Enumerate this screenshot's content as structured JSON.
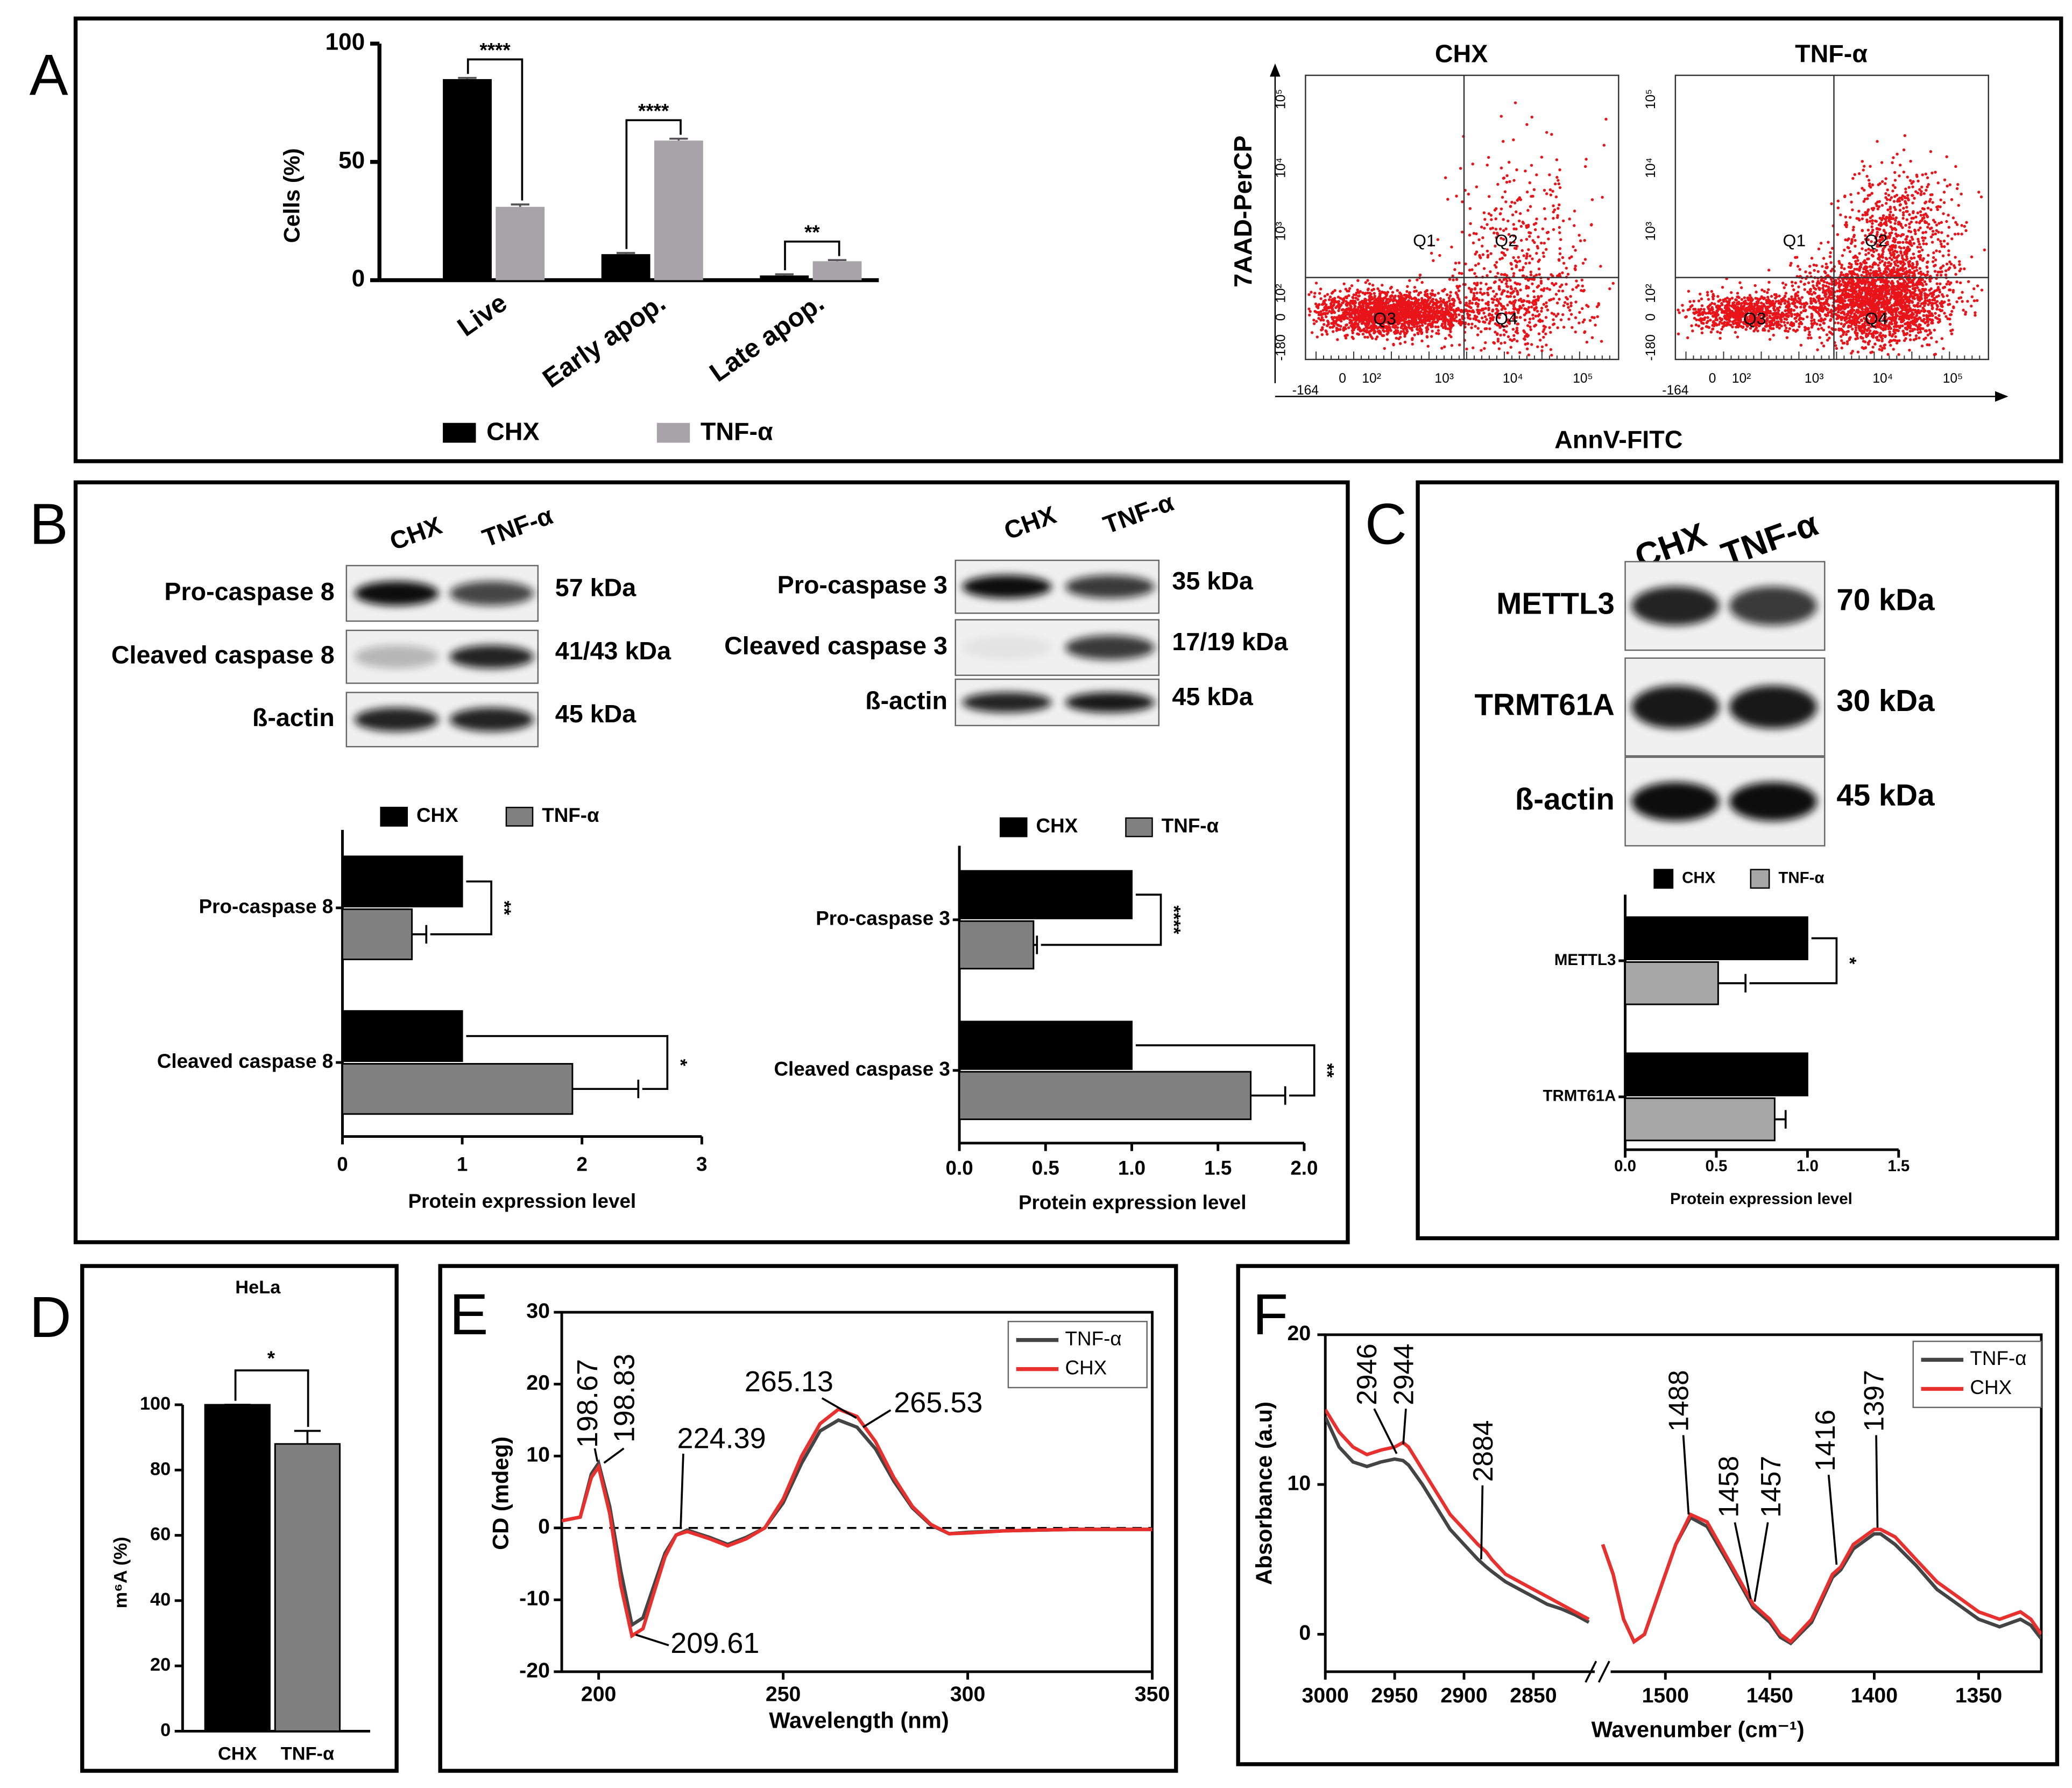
{
  "panel_labels": [
    "A",
    "B",
    "C",
    "D",
    "E",
    "F"
  ],
  "flow": {
    "titles": [
      "CHX",
      "TNF-α"
    ],
    "quadrants": [
      "Q1",
      "Q2",
      "Q3",
      "Q4"
    ],
    "ylabel": "7AAD-PerCP",
    "xlabel": "AnnV-FITC",
    "yticks": [
      "10⁵",
      "10⁴",
      "10³",
      "10²",
      "0",
      "-180"
    ],
    "xticks": [
      "-164",
      "0",
      "10²",
      "10³",
      "10⁴",
      "10⁵"
    ]
  },
  "blots": [
    {
      "lanes": [
        "CHX",
        "TNF-α"
      ],
      "rows": [
        {
          "label": "Pro-caspase 8",
          "size": "57 kDa"
        },
        {
          "label": "Cleaved caspase 8",
          "size": "41/43 kDa"
        },
        {
          "label": "ß-actin",
          "size": "45 kDa"
        }
      ]
    },
    {
      "lanes": [
        "CHX",
        "TNF-α"
      ],
      "rows": [
        {
          "label": "Pro-caspase 3",
          "size": "35 kDa"
        },
        {
          "label": "Cleaved caspase 3",
          "size": "17/19 kDa"
        },
        {
          "label": "ß-actin",
          "size": "45 kDa"
        }
      ]
    },
    {
      "lanes": [
        "CHX",
        "TNF-α"
      ],
      "rows": [
        {
          "label": "METTL3",
          "size": "70 kDa"
        },
        {
          "label": "TRMT61A",
          "size": "30 kDa"
        },
        {
          "label": "ß-actin",
          "size": "45 kDa"
        }
      ]
    }
  ],
  "chart_data": [
    {
      "type": "bar",
      "ylabel": "Cells (%)",
      "categories": [
        "Live",
        "Early apop.",
        "Late apop."
      ],
      "series": [
        {
          "name": "CHX",
          "color": "#000000",
          "values": [
            85,
            11,
            2
          ],
          "errors": [
            0.5,
            0.5,
            0.5
          ]
        },
        {
          "name": "TNF-α",
          "color": "#a7a3a8",
          "values": [
            31,
            59,
            8
          ],
          "errors": [
            1,
            0.8,
            0.5
          ]
        }
      ],
      "ylim": [
        0,
        100
      ],
      "yticks": [
        0,
        50,
        100
      ],
      "significance": [
        "****",
        "****",
        "**"
      ]
    },
    {
      "type": "hbar",
      "xlabel": "Protein expression level",
      "categories": [
        "Pro-caspase 8",
        "Cleaved caspase 8"
      ],
      "series": [
        {
          "name": "CHX",
          "color": "#000000",
          "values": [
            1,
            1
          ]
        },
        {
          "name": "TNF-α",
          "color": "#808080",
          "values": [
            0.58,
            1.92
          ],
          "errors": [
            0.12,
            0.55
          ]
        }
      ],
      "xlim": [
        0,
        3
      ],
      "xticks": [
        0,
        1,
        2,
        3
      ],
      "significance": [
        "**",
        "*"
      ]
    },
    {
      "type": "hbar",
      "xlabel": "Protein expression level",
      "categories": [
        "Pro-caspase 3",
        "Cleaved caspase 3"
      ],
      "series": [
        {
          "name": "CHX",
          "color": "#000000",
          "values": [
            1,
            1
          ]
        },
        {
          "name": "TNF-α",
          "color": "#808080",
          "values": [
            0.43,
            1.69
          ],
          "errors": [
            0.02,
            0.2
          ]
        }
      ],
      "xlim": [
        0,
        2
      ],
      "xticks": [
        {
          "value": 0,
          "label": "0.0"
        },
        0.5,
        {
          "value": 1,
          "label": "1.0"
        },
        1.5,
        {
          "value": 2,
          "label": "2.0"
        }
      ],
      "significance": [
        "****",
        "**"
      ]
    },
    {
      "type": "hbar",
      "xlabel": "Protein expression level",
      "categories": [
        "METTL3",
        "TRMT61A"
      ],
      "series": [
        {
          "name": "CHX",
          "color": "#000000",
          "values": [
            1,
            1
          ]
        },
        {
          "name": "TNF-α",
          "color": "#a6a6a6",
          "values": [
            0.51,
            0.82
          ],
          "errors": [
            0.15,
            0.06
          ]
        }
      ],
      "xlim": [
        0,
        1.5
      ],
      "xticks": [
        {
          "value": 0,
          "label": "0.0"
        },
        0.5,
        {
          "value": 1,
          "label": "1.0"
        },
        1.5
      ],
      "significance": [
        "*",
        null
      ]
    },
    {
      "type": "bar",
      "title": "HeLa",
      "ylabel": "m⁶A (%)",
      "categories": [
        "CHX",
        "TNF-α"
      ],
      "values": [
        100,
        88
      ],
      "errors": [
        0,
        4
      ],
      "colors": [
        "#000000",
        "#7f7f7f"
      ],
      "ylim": [
        0,
        100
      ],
      "yticks": [
        0,
        20,
        40,
        60,
        80,
        100
      ],
      "significance": "*"
    },
    {
      "type": "line",
      "xlabel": "Wavelength (nm)",
      "ylabel": "CD (mdeg)",
      "x": [
        190,
        195,
        198,
        200,
        203,
        206,
        209,
        212,
        215,
        218,
        221,
        224,
        227,
        230,
        235,
        240,
        245,
        250,
        255,
        260,
        265,
        270,
        275,
        280,
        285,
        290,
        295,
        300,
        310,
        320,
        330,
        340,
        350
      ],
      "series": [
        {
          "name": "TNF-α",
          "color": "#444444",
          "values": [
            1,
            1.5,
            7.5,
            9,
            3,
            -6,
            -13.5,
            -12.5,
            -8,
            -3.5,
            -1,
            -0.3,
            -0.8,
            -1.3,
            -2.3,
            -1.3,
            0,
            3.5,
            9,
            13.5,
            15,
            14,
            11,
            6.5,
            2.8,
            0.4,
            -0.8,
            -0.6,
            -0.4,
            -0.3,
            -0.2,
            -0.2,
            -0.2
          ]
        },
        {
          "name": "CHX",
          "color": "#e8312e",
          "values": [
            1,
            1.5,
            7,
            8.5,
            2,
            -8,
            -15,
            -14,
            -9,
            -4,
            -1,
            -0.5,
            -1,
            -1.5,
            -2.5,
            -1.5,
            0,
            4,
            10,
            14.5,
            16.5,
            15.5,
            12,
            7,
            3,
            0.5,
            -0.8,
            -0.7,
            -0.4,
            -0.3,
            -0.2,
            -0.2,
            -0.2
          ]
        }
      ],
      "xlim": [
        190,
        350
      ],
      "xticks": [
        200,
        250,
        300,
        350
      ],
      "ylim": [
        -20,
        30
      ],
      "yticks": [
        -20,
        -10,
        0,
        10,
        20,
        30
      ],
      "zero_line": true,
      "annotations": [
        {
          "text": "198.67",
          "color": "#000000"
        },
        {
          "text": "198.83",
          "color": "#e8312e"
        },
        {
          "text": "224.39",
          "color": "#e8312e"
        },
        {
          "text": "265.13",
          "color": "#e8312e"
        },
        {
          "text": "265.53",
          "color": "#000000"
        },
        {
          "text": "209.61",
          "color": "#e8312e"
        }
      ]
    },
    {
      "type": "broken_line",
      "xlabel": "Wavenumber (cm⁻¹)",
      "ylabel": "Absorbance (a.u)",
      "series": [
        {
          "name": "TNF-α",
          "color": "#444444"
        },
        {
          "name": "CHX",
          "color": "#e8312e"
        }
      ],
      "ylim": [
        -2.5,
        20
      ],
      "yticks": [
        0,
        10,
        20
      ],
      "segments": [
        {
          "xlim": [
            3000,
            2800
          ],
          "xticks": [
            3000,
            2950,
            2900,
            2850
          ],
          "x": [
            3000,
            2990,
            2980,
            2970,
            2960,
            2950,
            2944,
            2940,
            2930,
            2920,
            2910,
            2900,
            2890,
            2884,
            2880,
            2870,
            2860,
            2850,
            2840,
            2830,
            2820,
            2810
          ],
          "values": [
            [
              14.5,
              12.5,
              11.5,
              11.2,
              11.5,
              11.7,
              11.6,
              11.3,
              10,
              8.5,
              7,
              6,
              5,
              4.5,
              4.2,
              3.5,
              3,
              2.5,
              2,
              1.7,
              1.3,
              0.8
            ],
            [
              15,
              13.5,
              12.5,
              12,
              12.3,
              12.5,
              12.8,
              12.5,
              11,
              9.5,
              8,
              7,
              6,
              5.5,
              5,
              4,
              3.5,
              3,
              2.5,
              2,
              1.5,
              1
            ]
          ]
        },
        {
          "xlim": [
            1530,
            1320
          ],
          "xticks": [
            1500,
            1450,
            1400,
            1350
          ],
          "x": [
            1530,
            1525,
            1520,
            1515,
            1510,
            1500,
            1495,
            1488,
            1480,
            1470,
            1460,
            1458,
            1450,
            1445,
            1440,
            1430,
            1420,
            1416,
            1410,
            1400,
            1397,
            1390,
            1380,
            1370,
            1360,
            1350,
            1340,
            1330,
            1325,
            1320
          ],
          "values": [
            [
              6,
              4,
              1,
              -0.5,
              0,
              4,
              6,
              7.8,
              7.2,
              4.8,
              2.3,
              1.8,
              0.8,
              -0.2,
              -0.6,
              0.8,
              3.8,
              4.3,
              5.7,
              6.7,
              6.7,
              6,
              4.6,
              3,
              2,
              1,
              0.5,
              1,
              0.6,
              -0.3
            ],
            [
              6,
              4,
              1,
              -0.5,
              0,
              4,
              6,
              8,
              7.5,
              5,
              2.5,
              2,
              1,
              0,
              -0.5,
              1,
              4,
              4.5,
              6,
              7,
              7,
              6.5,
              5,
              3.5,
              2.5,
              1.5,
              1,
              1.5,
              1,
              0
            ]
          ]
        }
      ],
      "annotations": [
        {
          "text": "2946",
          "color": "#000000"
        },
        {
          "text": "2944",
          "color": "#e8312e"
        },
        {
          "text": "2884",
          "color": "#000000"
        },
        {
          "text": "1488",
          "color": "#000000"
        },
        {
          "text": "1458",
          "color": "#000000"
        },
        {
          "text": "1457",
          "color": "#e8312e"
        },
        {
          "text": "1416",
          "color": "#000000"
        },
        {
          "text": "1397",
          "color": "#000000"
        }
      ]
    }
  ]
}
